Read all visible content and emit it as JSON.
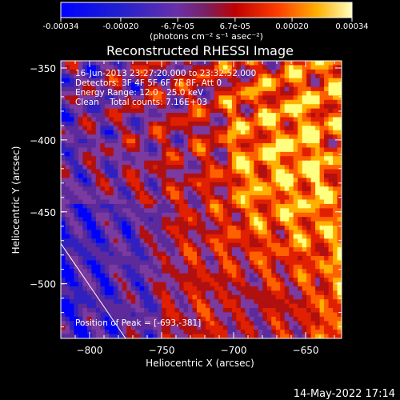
{
  "colorbar": {
    "tick_labels": [
      "-0.00034",
      "-0.00020",
      "-6.7e-05",
      "6.7e-05",
      "0.00020",
      "0.00034"
    ],
    "tick_values": [
      -0.00034,
      -0.0002,
      -6.7e-05,
      6.7e-05,
      0.0002,
      0.00034
    ],
    "range": [
      -0.00034,
      0.00034
    ],
    "unit_label": "(photons cm⁻² s⁻¹ asec⁻²)"
  },
  "chart_data": {
    "type": "heatmap",
    "title": "Reconstructed RHESSI Image",
    "xlabel": "Heliocentric X (arcsec)",
    "ylabel": "Heliocentric Y (arcsec)",
    "xlim": [
      -820,
      -625
    ],
    "ylim": [
      -538,
      -345
    ],
    "x_ticks": [
      -800,
      -750,
      -700,
      -650
    ],
    "y_ticks": [
      -350,
      -400,
      -450,
      -500
    ],
    "x_tick_labels": [
      "−800",
      "−750",
      "−700",
      "−650"
    ],
    "y_tick_labels": [
      "−350",
      "−400",
      "−450",
      "−500"
    ],
    "colormap": [
      "#0000ff",
      "#3020c0",
      "#5c2a9a",
      "#7a3aa0",
      "#b01010",
      "#e02000",
      "#ff6000",
      "#ffb000",
      "#ffff80"
    ],
    "limb_line": [
      [
        -820,
        -472
      ],
      [
        -775,
        -538
      ]
    ]
  },
  "annotations": {
    "time": "16-Jun-2013 23:27:20.000 to 23:32:52.000",
    "detectors": "Detectors: 3F 4F 5F 6F 7F 8F, Att 0",
    "energy": "Energy Range: 12.0 - 25.0 keV",
    "clean": "Clean    Total counts: 7.16E+03",
    "peak": "Position of Peak = [-693,-381]"
  },
  "footer": {
    "date": "14-May-2022 17:14"
  }
}
